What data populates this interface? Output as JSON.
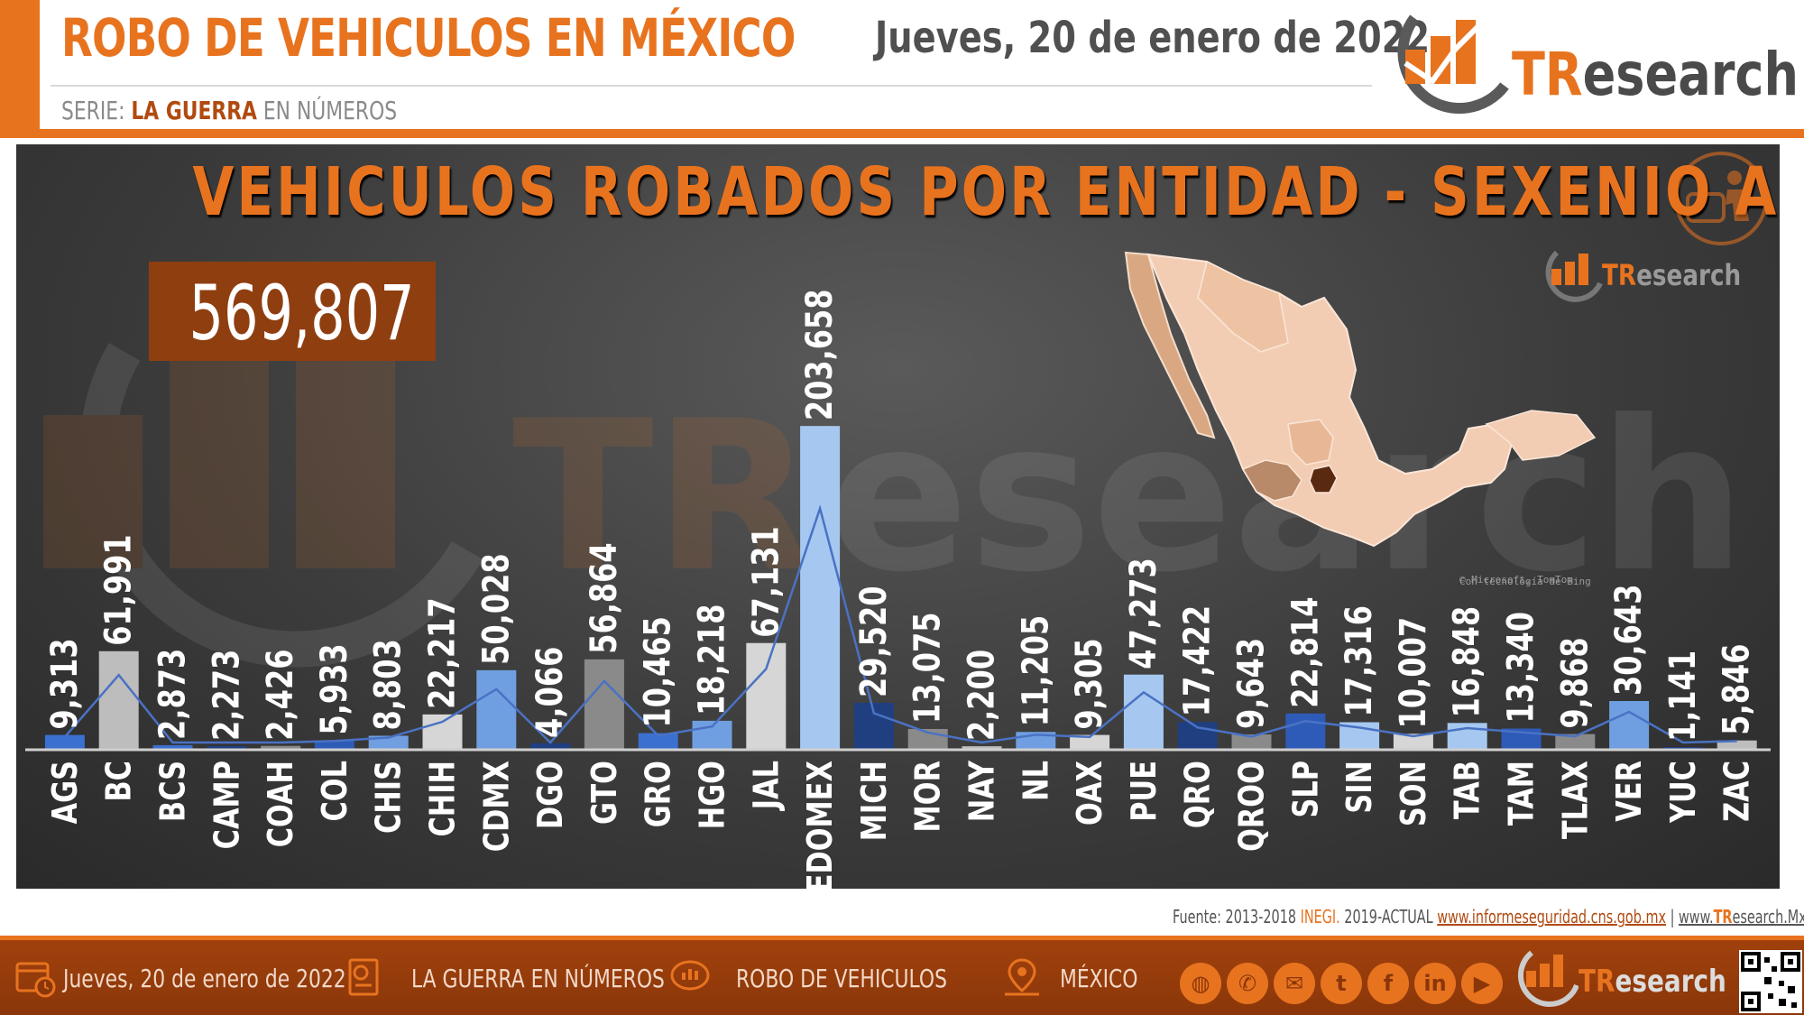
{
  "header": {
    "title": "ROBO DE VEHICULOS EN MÉXICO",
    "series_prefix": "SERIE:",
    "series_highlight": "LA GUERRA",
    "series_rest": "EN NÚMEROS",
    "date": "Jueves, 20 de enero de 2022"
  },
  "logo": {
    "t": "TR",
    "rest": "esearch"
  },
  "total": "569,807",
  "map_credit": [
    "Con tecnología de Bing",
    "© Microsoft, TomTom"
  ],
  "source": {
    "prefix": "Fuente: 2013-2018",
    "inegi": "INEGI.",
    "mid": "2019-ACTUAL",
    "url1": "www.informeseguridad.cns.gob.mx",
    "sep": "|",
    "url2_a": "www.",
    "url2_b": "TR",
    "url2_c": "esearch.Mx",
    "end": "|"
  },
  "footer": {
    "date": "Jueves, 20 de enero de 2022",
    "series": "LA GUERRA EN NÚMEROS",
    "topic": "ROBO DE VEHICULOS",
    "place": "MÉXICO"
  },
  "colors": {
    "accent": "#e8731f",
    "dark_orange": "#8f3e10",
    "line": "#4a72c4",
    "bar_palette": [
      "#3b6fd0",
      "#bdbdbd",
      "#6f9fe0",
      "#1f3f80",
      "#8a8a8a",
      "#a6c8f0",
      "#2e5bb8",
      "#d6d6d6"
    ]
  },
  "chart_data": {
    "type": "bar",
    "title": "VEHICULOS ROBADOS POR ENTIDAD - SEXENIO AMLO",
    "categories": [
      "AGS",
      "BC",
      "BCS",
      "CAMP",
      "COAH",
      "COL",
      "CHIS",
      "CHIH",
      "CDMX",
      "DGO",
      "GTO",
      "GRO",
      "HGO",
      "JAL",
      "EDOMEX",
      "MICH",
      "MOR",
      "NAY",
      "NL",
      "OAX",
      "PUE",
      "QRO",
      "QROO",
      "SLP",
      "SIN",
      "SON",
      "TAB",
      "TAM",
      "TLAX",
      "VER",
      "YUC",
      "ZAC"
    ],
    "value_labels": [
      "9,313",
      "61,991",
      "2,873",
      "2,273",
      "2,426",
      "5,933",
      "8,803",
      "22,217",
      "50,028",
      "4,066",
      "56,864",
      "10,465",
      "18,218",
      "67,131",
      "203,658",
      "29,520",
      "13,075",
      "2,200",
      "11,205",
      "9,305",
      "47,273",
      "17,422",
      "9,643",
      "22,814",
      "17,316",
      "10,007",
      "16,848",
      "13,340",
      "9,868",
      "30,643",
      "1,141",
      "5,846"
    ],
    "values": [
      9313,
      61991,
      2873,
      2273,
      2426,
      5933,
      8803,
      22217,
      50028,
      4066,
      56864,
      10465,
      18218,
      67131,
      203658,
      29520,
      13075,
      2200,
      11205,
      9305,
      47273,
      17422,
      9643,
      22814,
      17316,
      10007,
      16848,
      13340,
      9868,
      30643,
      1141,
      5846
    ],
    "bar_color_index": [
      0,
      1,
      0,
      3,
      4,
      6,
      2,
      7,
      2,
      3,
      4,
      0,
      2,
      7,
      5,
      3,
      4,
      1,
      2,
      7,
      5,
      3,
      4,
      6,
      5,
      7,
      5,
      6,
      4,
      2,
      3,
      1
    ],
    "ylim": [
      0,
      210000
    ],
    "series": [
      {
        "values": [
          9313,
          61991,
          2873,
          2273,
          2426,
          5933,
          8803,
          22217,
          50028,
          4066,
          56864,
          10465,
          18218,
          67131,
          203658,
          29520,
          13075,
          2200,
          11205,
          9305,
          47273,
          17422,
          9643,
          22814,
          17316,
          10007,
          16848,
          13340,
          9868,
          30643,
          1141,
          5846
        ]
      }
    ]
  }
}
